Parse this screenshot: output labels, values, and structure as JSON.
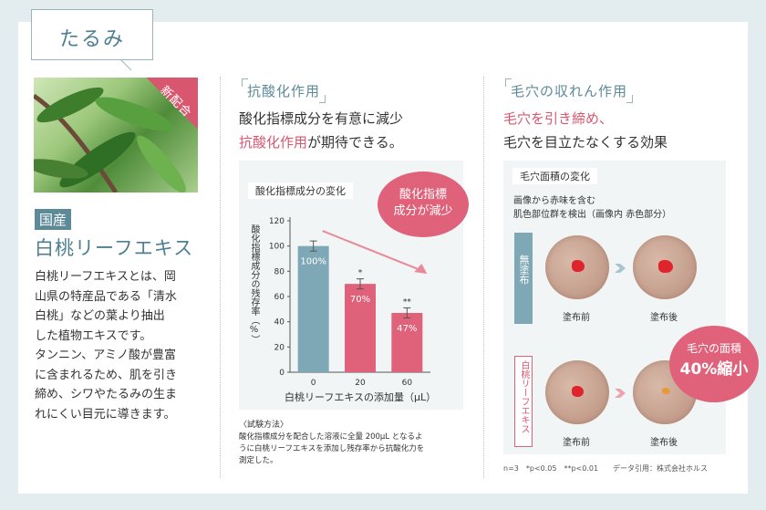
{
  "tab": {
    "title": "たるみ"
  },
  "ingredient": {
    "badge": "新配合",
    "origin": "国産",
    "name": "白桃リーフエキス",
    "description_lines": [
      "白桃リーフエキスとは、岡",
      "山県の特産品である「清水",
      "白桃」などの葉より抽出",
      "した植物エキスです。",
      "タンニン、アミノ酸が豊富",
      "に含まれるため、肌を引き",
      "締め、シワやたるみの生ま",
      "れにくい目元に導きます。"
    ]
  },
  "antioxidant": {
    "heading": "抗酸化作用",
    "line1": "酸化指標成分を有意に減少",
    "line2_pink": "抗酸化作用",
    "line2_rest": "が期待できる。",
    "bubble_line1": "酸化指標",
    "bubble_line2": "成分が減少",
    "test_method_title": "〈試験方法〉",
    "test_method_lines": [
      "酸化指標成分を配合した溶液に全量 200μL となるよ",
      "うに白桃リーフエキスを添加し残存率から抗酸化力を",
      "測定した。"
    ]
  },
  "chart_data": {
    "type": "bar",
    "title": "酸化指標成分の変化",
    "ylabel": "酸化指標成分の残存率（%）",
    "xlabel": "白桃リーフエキスの添加量（μL）",
    "categories": [
      "0",
      "20",
      "60"
    ],
    "values": [
      100,
      70,
      47
    ],
    "value_labels": [
      "100%",
      "70%",
      "47%"
    ],
    "significance": [
      "",
      "*",
      "**"
    ],
    "yticks": [
      "0",
      "20",
      "40",
      "60",
      "80",
      "100",
      "120"
    ],
    "ylim": [
      0,
      120
    ],
    "colors": [
      "#7fa8b7",
      "#e0617a",
      "#e0617a"
    ]
  },
  "pores": {
    "heading": "毛穴の収れん作用",
    "line1_pink": "毛穴を引き締め、",
    "line2": "毛穴を目立たなくする効果",
    "card_title": "毛穴面積の変化",
    "card_sub1": "画像から赤味を含む",
    "card_sub2": "肌色部位群を検出（画像内 赤色部分）",
    "row1_label": "無塗布",
    "row2_label": "白桃リーフエキス",
    "before": "塗布前",
    "after": "塗布後",
    "bubble_line1": "毛穴の面積",
    "bubble_line2": "40%縮小",
    "footnote": "n=3　*p<0.05　**p<0.01　　データ引用：株式会社ホルス"
  }
}
